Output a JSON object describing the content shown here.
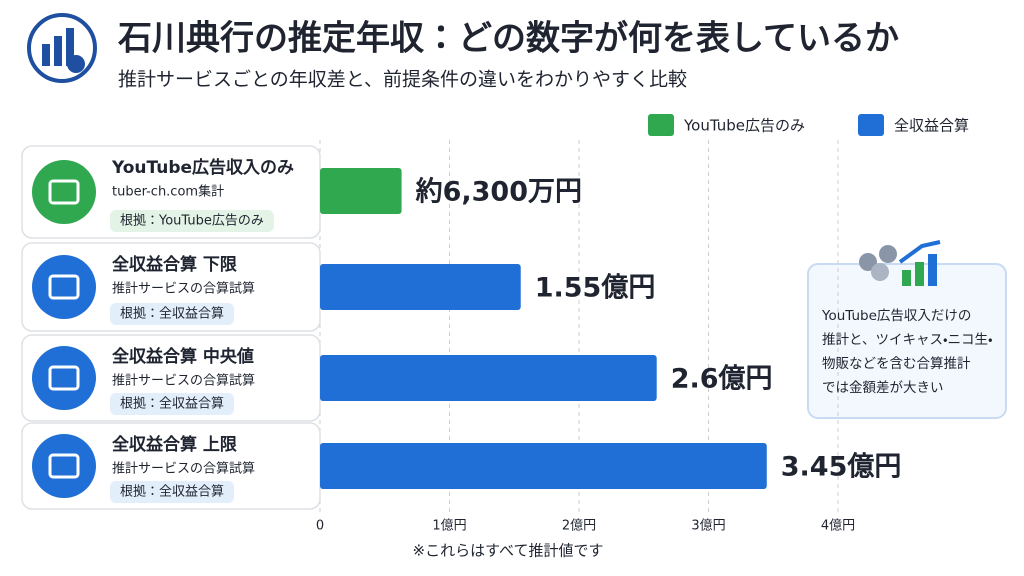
{
  "header": {
    "title": "石川典行の推定年収：どの数字が何を表しているか",
    "subtitle": "推計サービスごとの年収差と、前提条件の違いをわかりやすく比較"
  },
  "chart_data": {
    "type": "bar",
    "orientation": "horizontal",
    "categories": [
      "YouTube広告収入のみ",
      "全収益合算 下限",
      "全収益合算 中央値",
      "全収益合算 上限"
    ],
    "category_sources": [
      "tuber-ch.com集計",
      "推計サービスの合算試算",
      "推計サービスの合算試算",
      "推計サービスの合算試算"
    ],
    "category_badges": [
      "根拠：YouTube広告のみ",
      "根拠：全収益合算",
      "根拠：全収益合算",
      "根拠：全収益合算"
    ],
    "series": [
      {
        "name": "YouTube広告のみ",
        "color": "#2fa84f",
        "values": [
          0.63,
          null,
          null,
          null
        ],
        "value_labels": [
          "約6,300万円",
          null,
          null,
          null
        ]
      },
      {
        "name": "全収益合算",
        "color": "#1f6fd6",
        "values": [
          null,
          1.55,
          2.6,
          3.45
        ],
        "value_labels": [
          null,
          "1.55億円",
          "2.6億円",
          "3.45億円"
        ]
      }
    ],
    "xlim": [
      0,
      4
    ],
    "xticks": [
      0,
      {
        "value": 1,
        "label": "1億円"
      },
      {
        "value": 2,
        "label": "2億円"
      },
      {
        "value": 3,
        "label": "3億円"
      },
      {
        "value": 4,
        "label": "4億円"
      }
    ],
    "grid": true,
    "legend": "top-right"
  },
  "note_box": {
    "lines": [
      "YouTube広告収入だけの",
      "推計と、ツイキャス・ニコ生・",
      "物販などを含む合算推計",
      "では金額差が大きい"
    ]
  },
  "footnote": "※これらはすべて推計値です"
}
